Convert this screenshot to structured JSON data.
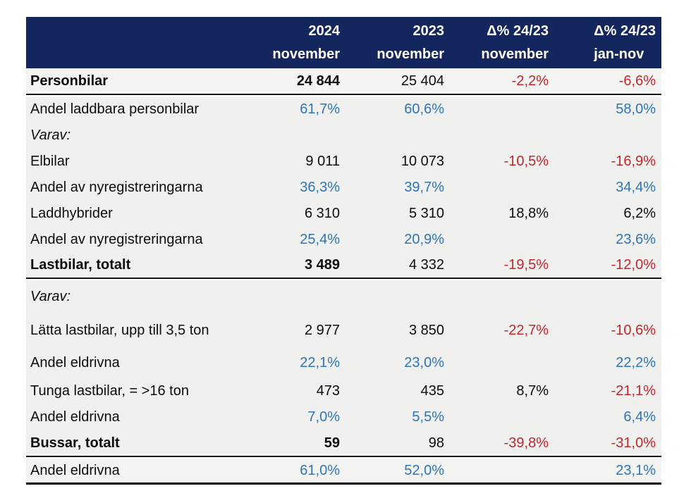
{
  "colors": {
    "navy": "#14265E",
    "header_text": "#FFFFFF",
    "blue": "#2E75B6",
    "red": "#C2262C",
    "rowbg": "#F0F0EF"
  },
  "table": {
    "header": {
      "columns": [
        {
          "line1": "2024",
          "line2": "november",
          "align": "right"
        },
        {
          "line1": "2023",
          "line2": "november",
          "align": "right"
        },
        {
          "line1": "Δ% 24/23",
          "line2": "november",
          "align": "right"
        },
        {
          "line1": "Δ% 24/23",
          "line2": "jan-nov",
          "align": "left-block"
        }
      ]
    },
    "rows": [
      {
        "label": "Personbilar",
        "bold": true,
        "section_end": true,
        "cells": [
          {
            "t": "24 844",
            "b": true
          },
          {
            "t": "25 404"
          },
          {
            "t": "-2,2%",
            "c": "red"
          },
          {
            "t": "-6,6%",
            "c": "red"
          }
        ]
      },
      {
        "label": "Andel laddbara personbilar",
        "cells": [
          {
            "t": "61,7%",
            "c": "blue"
          },
          {
            "t": "60,6%",
            "c": "blue"
          },
          {
            "t": ""
          },
          {
            "t": "58,0%",
            "c": "blue"
          }
        ]
      },
      {
        "label": "Varav:",
        "italic": true,
        "cells": [
          {
            "t": ""
          },
          {
            "t": ""
          },
          {
            "t": ""
          },
          {
            "t": ""
          }
        ]
      },
      {
        "label": "Elbilar",
        "cells": [
          {
            "t": "9 011"
          },
          {
            "t": "10 073"
          },
          {
            "t": "-10,5%",
            "c": "red"
          },
          {
            "t": "-16,9%",
            "c": "red"
          }
        ]
      },
      {
        "label": "Andel av nyregistreringarna",
        "cells": [
          {
            "t": "36,3%",
            "c": "blue"
          },
          {
            "t": "39,7%",
            "c": "blue"
          },
          {
            "t": ""
          },
          {
            "t": "34,4%",
            "c": "blue"
          }
        ]
      },
      {
        "label": "Laddhybrider",
        "cells": [
          {
            "t": "6 310"
          },
          {
            "t": "5 310"
          },
          {
            "t": "18,8%"
          },
          {
            "t": "6,2%"
          }
        ]
      },
      {
        "label": "Andel av nyregistreringarna",
        "cells": [
          {
            "t": "25,4%",
            "c": "blue"
          },
          {
            "t": "20,9%",
            "c": "blue"
          },
          {
            "t": ""
          },
          {
            "t": "23,6%",
            "c": "blue"
          }
        ]
      },
      {
        "label": "Lastbilar, totalt",
        "bold": true,
        "section_end": true,
        "cells": [
          {
            "t": "3 489",
            "b": true
          },
          {
            "t": "4 332"
          },
          {
            "t": "-19,5%",
            "c": "red"
          },
          {
            "t": "-12,0%",
            "c": "red"
          }
        ]
      },
      {
        "label": "Varav:",
        "italic": true,
        "cells": [
          {
            "t": ""
          },
          {
            "t": ""
          },
          {
            "t": ""
          },
          {
            "t": ""
          }
        ]
      },
      {
        "label": "Lätta lastbilar, upp till 3,5 ton",
        "cells": [
          {
            "t": "2 977"
          },
          {
            "t": "3 850"
          },
          {
            "t": "-22,7%",
            "c": "red"
          },
          {
            "t": "-10,6%",
            "c": "red"
          }
        ]
      },
      {
        "label": "Andel eldrivna",
        "cells": [
          {
            "t": "22,1%",
            "c": "blue"
          },
          {
            "t": "23,0%",
            "c": "blue"
          },
          {
            "t": ""
          },
          {
            "t": "22,2%",
            "c": "blue"
          }
        ]
      },
      {
        "label": "Tunga lastbilar, = >16 ton",
        "cells": [
          {
            "t": "473"
          },
          {
            "t": "435"
          },
          {
            "t": "8,7%"
          },
          {
            "t": "-21,1%",
            "c": "red"
          }
        ]
      },
      {
        "label": "Andel eldrivna",
        "cells": [
          {
            "t": "7,0%",
            "c": "blue"
          },
          {
            "t": "5,5%",
            "c": "blue"
          },
          {
            "t": ""
          },
          {
            "t": "6,4%",
            "c": "blue"
          }
        ]
      },
      {
        "label": "Bussar, totalt",
        "bold": true,
        "section_end": true,
        "cells": [
          {
            "t": "59",
            "b": true
          },
          {
            "t": "98"
          },
          {
            "t": "-39,8%",
            "c": "red"
          },
          {
            "t": "-31,0%",
            "c": "red"
          }
        ]
      },
      {
        "label": "Andel eldrivna",
        "thick_end": true,
        "cells": [
          {
            "t": "61,0%",
            "c": "blue"
          },
          {
            "t": "52,0%",
            "c": "blue"
          },
          {
            "t": ""
          },
          {
            "t": "23,1%",
            "c": "blue"
          }
        ]
      }
    ]
  },
  "chart_data": {
    "type": "table",
    "columns": [
      "",
      "2024 november",
      "2023 november",
      "Δ% 24/23 november",
      "Δ% 24/23 jan-nov"
    ],
    "rows": [
      [
        "Personbilar",
        "24 844",
        "25 404",
        "-2,2%",
        "-6,6%"
      ],
      [
        "Andel laddbara personbilar",
        "61,7%",
        "60,6%",
        "",
        "58,0%"
      ],
      [
        "Varav:",
        "",
        "",
        "",
        ""
      ],
      [
        "Elbilar",
        "9 011",
        "10 073",
        "-10,5%",
        "-16,9%"
      ],
      [
        "Andel av nyregistreringarna",
        "36,3%",
        "39,7%",
        "",
        "34,4%"
      ],
      [
        "Laddhybrider",
        "6 310",
        "5 310",
        "18,8%",
        "6,2%"
      ],
      [
        "Andel av nyregistreringarna",
        "25,4%",
        "20,9%",
        "",
        "23,6%"
      ],
      [
        "Lastbilar, totalt",
        "3 489",
        "4 332",
        "-19,5%",
        "-12,0%"
      ],
      [
        "Varav:",
        "",
        "",
        "",
        ""
      ],
      [
        "Lätta lastbilar, upp till 3,5 ton",
        "2 977",
        "3 850",
        "-22,7%",
        "-10,6%"
      ],
      [
        "Andel eldrivna",
        "22,1%",
        "23,0%",
        "",
        "22,2%"
      ],
      [
        "Tunga lastbilar, = >16 ton",
        "473",
        "435",
        "8,7%",
        "-21,1%"
      ],
      [
        "Andel eldrivna",
        "7,0%",
        "5,5%",
        "",
        "6,4%"
      ],
      [
        "Bussar, totalt",
        "59",
        "98",
        "-39,8%",
        "-31,0%"
      ],
      [
        "Andel eldrivna",
        "61,0%",
        "52,0%",
        "",
        "23,1%"
      ]
    ]
  }
}
